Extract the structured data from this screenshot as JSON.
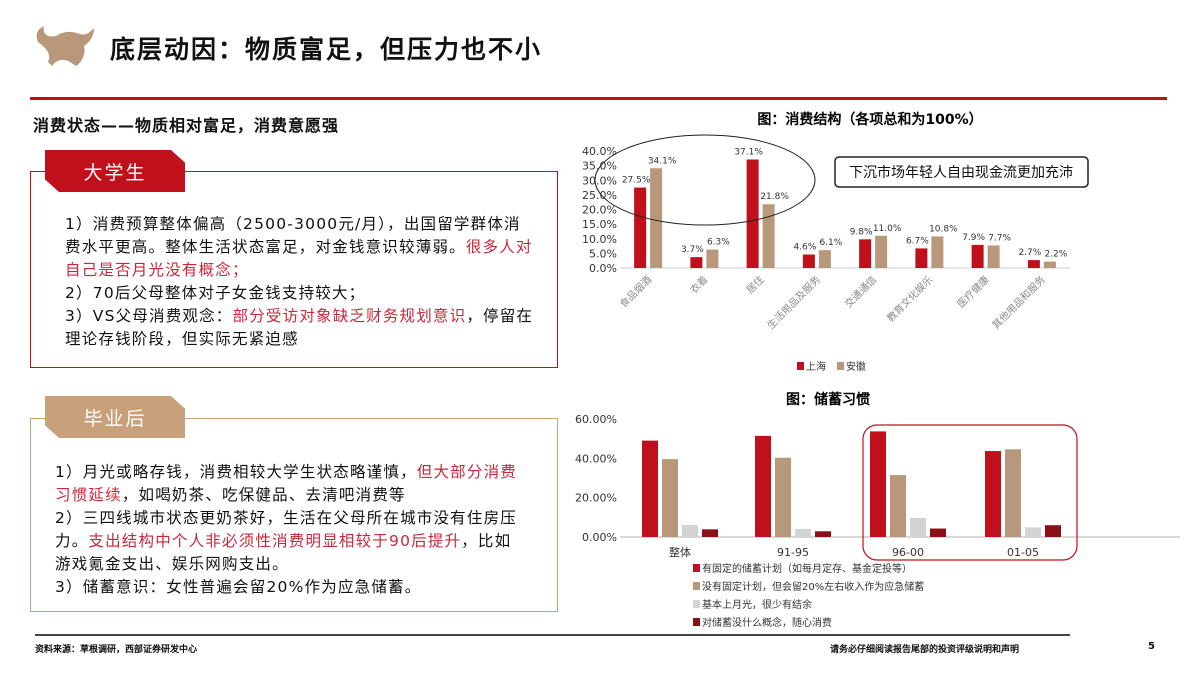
{
  "header": {
    "title": "底层动因：物质富足，但压力也不小",
    "subtitle": "消费状态——物质相对富足，消费意愿强"
  },
  "box1": {
    "tab": "大学生",
    "p1": [
      "1）消费预算整体偏高（2500-3000元/月），出国留学群体消费水平更高。整体生活状态富足，对金钱意识较薄弱。",
      "很多人对自己是否月光没有概念；"
    ],
    "p2": "2）70后父母整体对子女金钱支持较大；",
    "p3": [
      "3）VS父母消费观念：",
      "部分受访对象缺乏财务规划意识",
      "，停留在理论存钱阶段，但实际无紧迫感"
    ]
  },
  "box2": {
    "tab": "毕业后",
    "p1": [
      "1）月光或略存钱，消费相较大学生状态略谨慎，",
      "但大部分消费习惯延续",
      "，如喝奶茶、吃保健品、去清吧消费等"
    ],
    "p2": [
      "2）三四线城市状态更奶茶好，生活在父母所在城市没有住房压力。",
      "支出结构中个人非必须性消费明显相较于90后提升",
      "，比如游戏氪金支出、娱乐网购支出。"
    ],
    "p3": "3）储蓄意识：女性普遍会留20%作为应急储蓄。"
  },
  "footer": {
    "source": "资料来源：草根调研，西部证券研发中心",
    "disclaimer": "请务必仔细阅读报告尾部的投资评级说明和声明",
    "page": "5"
  },
  "colors": {
    "red": "#c0101c",
    "tan": "#b8977a",
    "grey": "#d3d3d3",
    "dark": "#8b1018"
  },
  "chart_data": [
    {
      "type": "bar",
      "title": "图：消费结构（各项总和为100%）",
      "categories": [
        "食品烟酒",
        "衣着",
        "居住",
        "生活用品及服务",
        "交通通信",
        "教育文化娱乐",
        "医疗健康",
        "其他用品和服务"
      ],
      "series": [
        {
          "name": "上海",
          "values": [
            27.5,
            3.7,
            37.1,
            4.6,
            9.8,
            6.7,
            7.9,
            2.7
          ]
        },
        {
          "name": "安徽",
          "values": [
            34.1,
            6.3,
            21.8,
            6.1,
            11.0,
            10.8,
            7.7,
            2.2
          ]
        }
      ],
      "yticks": [
        "40.0%",
        "35.0%",
        "30.0%",
        "25.0%",
        "20.0%",
        "15.0%",
        "10.0%",
        "5.0%",
        "0.0%"
      ],
      "ylim": [
        0,
        40
      ],
      "legend": "bottom",
      "annotation": "下沉市场年轻人自由现金流更加充沛"
    },
    {
      "type": "bar",
      "title": "图：储蓄习惯",
      "categories": [
        "整体",
        "91-95",
        "96-00",
        "01-05"
      ],
      "series": [
        {
          "name": "有固定的储蓄计划（如每月定存、基金定投等）",
          "values": [
            49.0,
            51.4,
            53.7,
            43.7
          ]
        },
        {
          "name": "没有固定计划，但会留20%左右收入作为应急储蓄",
          "values": [
            39.6,
            40.3,
            31.5,
            44.6
          ]
        },
        {
          "name": "基本上月光，很少有结余",
          "values": [
            6.1,
            4.1,
            9.7,
            4.9
          ]
        },
        {
          "name": "对储蓄没什么概念，随心消费",
          "values": [
            3.9,
            2.9,
            4.3,
            6.0
          ]
        }
      ],
      "yticks": [
        "60.00%",
        "40.00%",
        "20.00%",
        "0.00%"
      ],
      "ylim": [
        0,
        60
      ],
      "legend": "bottom"
    }
  ]
}
